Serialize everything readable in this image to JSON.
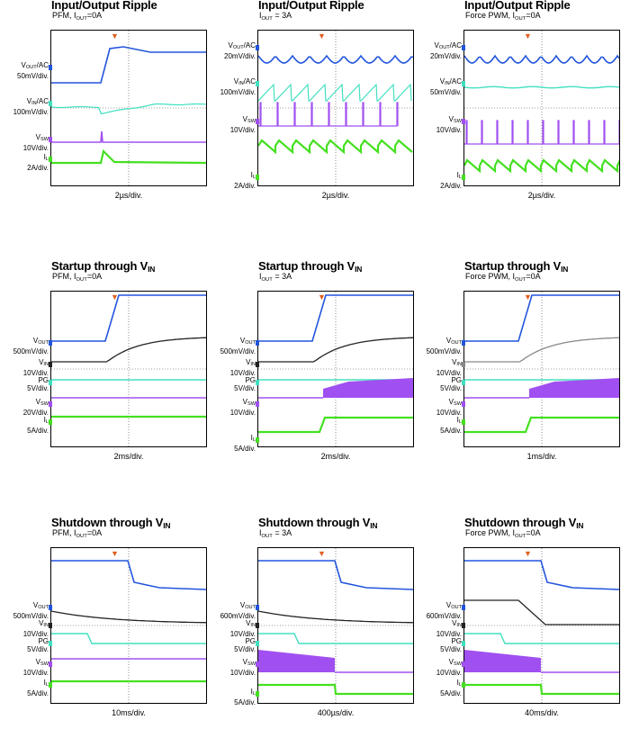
{
  "panels": [
    {
      "title": "Input/Output Ripple",
      "title_sub": "",
      "subtitle": "PFM, I",
      "subtitle_sub": "OUT",
      "subtitle_tail": "=0A",
      "xlabel": "2µs/div.",
      "channels": [
        {
          "name": "V",
          "name_sub": "OUT",
          "name_tail": "/AC",
          "scale": "50mV/div.",
          "color": "#2255dd"
        },
        {
          "name": "V",
          "name_sub": "IN",
          "name_tail": "/AC",
          "scale": "100mV/div.",
          "color": "#40e0c0"
        },
        {
          "name": "V",
          "name_sub": "SW",
          "name_tail": "",
          "scale": "10V/div.",
          "color": "#a050f0"
        },
        {
          "name": "I",
          "name_sub": "L",
          "name_tail": "",
          "scale": "2A/div.",
          "color": "#44e020"
        }
      ]
    },
    {
      "title": "Input/Output Ripple",
      "title_sub": "",
      "subtitle": "I",
      "subtitle_sub": "OUT",
      "subtitle_tail": " = 3A",
      "xlabel": "2µs/div.",
      "channels": [
        {
          "name": "V",
          "name_sub": "OUT",
          "name_tail": "/AC",
          "scale": "20mV/div.",
          "color": "#2255dd"
        },
        {
          "name": "V",
          "name_sub": "IN",
          "name_tail": "/AC",
          "scale": "100mV/div.",
          "color": "#40e0c0"
        },
        {
          "name": "V",
          "name_sub": "SW",
          "name_tail": "",
          "scale": "10V/div.",
          "color": "#a050f0"
        },
        {
          "name": "I",
          "name_sub": "L",
          "name_tail": "",
          "scale": "2A/div.",
          "color": "#44e020"
        }
      ]
    },
    {
      "title": "Input/Output Ripple",
      "title_sub": "",
      "subtitle": "Force PWM, I",
      "subtitle_sub": "OUT",
      "subtitle_tail": "=0A",
      "xlabel": "2µs/div.",
      "channels": [
        {
          "name": "V",
          "name_sub": "OUT",
          "name_tail": "/AC",
          "scale": "20mV/div.",
          "color": "#2255dd"
        },
        {
          "name": "V",
          "name_sub": "IN",
          "name_tail": "/AC",
          "scale": "50mV/div.",
          "color": "#40e0c0"
        },
        {
          "name": "V",
          "name_sub": "SW",
          "name_tail": "",
          "scale": "10V/div.",
          "color": "#a050f0"
        },
        {
          "name": "I",
          "name_sub": "L",
          "name_tail": "",
          "scale": "2A/div.",
          "color": "#44e020"
        }
      ]
    },
    {
      "title": "Startup through V",
      "title_sub": "IN",
      "subtitle": "PFM, I",
      "subtitle_sub": "OUT",
      "subtitle_tail": "=0A",
      "xlabel": "2ms/div.",
      "channels": [
        {
          "name": "V",
          "name_sub": "OUT",
          "name_tail": "",
          "scale": "500mV/div.",
          "color": "#2255dd"
        },
        {
          "name": "V",
          "name_sub": "IN",
          "name_tail": "",
          "scale": "10V/div.",
          "color": "#222222"
        },
        {
          "name": "PG",
          "name_sub": "",
          "name_tail": "",
          "scale": "5V/div.",
          "color": "#40e0c0"
        },
        {
          "name": "V",
          "name_sub": "SW",
          "name_tail": "",
          "scale": "20V/div.",
          "color": "#a050f0"
        },
        {
          "name": "I",
          "name_sub": "L",
          "name_tail": "",
          "scale": "5A/div.",
          "color": "#44e020"
        }
      ]
    },
    {
      "title": "Startup through V",
      "title_sub": "IN",
      "subtitle": "I",
      "subtitle_sub": "OUT",
      "subtitle_tail": " = 3A",
      "xlabel": "2ms/div.",
      "channels": [
        {
          "name": "V",
          "name_sub": "OUT",
          "name_tail": "",
          "scale": "500mV/div.",
          "color": "#2255dd"
        },
        {
          "name": "V",
          "name_sub": "IN",
          "name_tail": "",
          "scale": "10V/div.",
          "color": "#222222"
        },
        {
          "name": "PG",
          "name_sub": "",
          "name_tail": "",
          "scale": "5V/div.",
          "color": "#40e0c0"
        },
        {
          "name": "V",
          "name_sub": "SW",
          "name_tail": "",
          "scale": "10V/div.",
          "color": "#a050f0"
        },
        {
          "name": "I",
          "name_sub": "L",
          "name_tail": "",
          "scale": "5A/div.",
          "color": "#44e020"
        }
      ]
    },
    {
      "title": "Startup through V",
      "title_sub": "IN",
      "subtitle": "Force PWM, I",
      "subtitle_sub": "OUT",
      "subtitle_tail": "=0A",
      "xlabel": "1ms/div.",
      "channels": [
        {
          "name": "V",
          "name_sub": "OUT",
          "name_tail": "",
          "scale": "500mV/div.",
          "color": "#2255dd"
        },
        {
          "name": "V",
          "name_sub": "IN",
          "name_tail": "",
          "scale": "10V/div.",
          "color": "#888888"
        },
        {
          "name": "PG",
          "name_sub": "",
          "name_tail": "",
          "scale": "5V/div.",
          "color": "#40e0c0"
        },
        {
          "name": "V",
          "name_sub": "SW",
          "name_tail": "",
          "scale": "10V/div.",
          "color": "#a050f0"
        },
        {
          "name": "I",
          "name_sub": "L",
          "name_tail": "",
          "scale": "5A/div.",
          "color": "#44e020"
        }
      ]
    },
    {
      "title": "Shutdown through V",
      "title_sub": "IN",
      "subtitle": "PFM, I",
      "subtitle_sub": "OUT",
      "subtitle_tail": "=0A",
      "xlabel": "10ms/div.",
      "channels": [
        {
          "name": "V",
          "name_sub": "OUT",
          "name_tail": "",
          "scale": "500mV/div.",
          "color": "#2255dd"
        },
        {
          "name": "V",
          "name_sub": "IN",
          "name_tail": "",
          "scale": "10V/div.",
          "color": "#222222"
        },
        {
          "name": "PG",
          "name_sub": "",
          "name_tail": "",
          "scale": "5V/div.",
          "color": "#40e0c0"
        },
        {
          "name": "V",
          "name_sub": "SW",
          "name_tail": "",
          "scale": "10V/div.",
          "color": "#a050f0"
        },
        {
          "name": "I",
          "name_sub": "L",
          "name_tail": "",
          "scale": "5A/div.",
          "color": "#44e020"
        }
      ]
    },
    {
      "title": "Shutdown through V",
      "title_sub": "IN",
      "subtitle": "I",
      "subtitle_sub": "OUT",
      "subtitle_tail": " = 3A",
      "xlabel": "400µs/div.",
      "channels": [
        {
          "name": "V",
          "name_sub": "OUT",
          "name_tail": "",
          "scale": "600mV/div.",
          "color": "#2255dd"
        },
        {
          "name": "V",
          "name_sub": "IN",
          "name_tail": "",
          "scale": "10V/div.",
          "color": "#222222"
        },
        {
          "name": "PG",
          "name_sub": "",
          "name_tail": "",
          "scale": "5V/div.",
          "color": "#40e0c0"
        },
        {
          "name": "V",
          "name_sub": "SW",
          "name_tail": "",
          "scale": "10V/div.",
          "color": "#a050f0"
        },
        {
          "name": "I",
          "name_sub": "L",
          "name_tail": "",
          "scale": "5A/div.",
          "color": "#44e020"
        }
      ]
    },
    {
      "title": "Shutdown through V",
      "title_sub": "IN",
      "subtitle": "Force PWM, I",
      "subtitle_sub": "OUT",
      "subtitle_tail": "=0A",
      "xlabel": "40ms/div.",
      "channels": [
        {
          "name": "V",
          "name_sub": "OUT",
          "name_tail": "",
          "scale": "600mV/div.",
          "color": "#2255dd"
        },
        {
          "name": "V",
          "name_sub": "IN",
          "name_tail": "",
          "scale": "10V/div.",
          "color": "#222222"
        },
        {
          "name": "PG",
          "name_sub": "",
          "name_tail": "",
          "scale": "5V/div.",
          "color": "#40e0c0"
        },
        {
          "name": "V",
          "name_sub": "SW",
          "name_tail": "",
          "scale": "10V/div.",
          "color": "#a050f0"
        },
        {
          "name": "I",
          "name_sub": "L",
          "name_tail": "",
          "scale": "5A/div.",
          "color": "#44e020"
        }
      ]
    }
  ],
  "chart_data": {
    "type": "line",
    "grid": false,
    "description_units": "oscilloscope captures; time axis scale per panel",
    "panels": [
      {
        "panel": 1,
        "series": [
          {
            "name": "VOUT/AC",
            "shape": "step-up"
          },
          {
            "name": "VIN/AC",
            "shape": "dip-recover"
          },
          {
            "name": "VSW",
            "shape": "single-pulse"
          },
          {
            "name": "IL",
            "shape": "triangle-burst"
          }
        ]
      },
      {
        "panel": 2,
        "series": [
          {
            "name": "VOUT/AC",
            "shape": "ripple"
          },
          {
            "name": "VIN/AC",
            "shape": "sawtooth"
          },
          {
            "name": "VSW",
            "shape": "pulse-train"
          },
          {
            "name": "IL",
            "shape": "sawtooth"
          }
        ]
      },
      {
        "panel": 3,
        "series": [
          {
            "name": "VOUT/AC",
            "shape": "ripple"
          },
          {
            "name": "VIN/AC",
            "shape": "flat-noisy"
          },
          {
            "name": "VSW",
            "shape": "pulse-train"
          },
          {
            "name": "IL",
            "shape": "sawtooth"
          }
        ]
      },
      {
        "panel": 4,
        "series": [
          {
            "name": "VOUT",
            "shape": "ramp-up"
          },
          {
            "name": "VIN",
            "shape": "rise-exp"
          },
          {
            "name": "PG",
            "shape": "flat"
          },
          {
            "name": "VSW",
            "shape": "flat"
          },
          {
            "name": "IL",
            "shape": "flat"
          }
        ]
      },
      {
        "panel": 5,
        "series": [
          {
            "name": "VOUT",
            "shape": "ramp-up"
          },
          {
            "name": "VIN",
            "shape": "rise-exp"
          },
          {
            "name": "PG",
            "shape": "flat"
          },
          {
            "name": "VSW",
            "shape": "switching-on"
          },
          {
            "name": "IL",
            "shape": "step-up"
          }
        ]
      },
      {
        "panel": 6,
        "series": [
          {
            "name": "VOUT",
            "shape": "ramp-up"
          },
          {
            "name": "VIN",
            "shape": "rise-exp"
          },
          {
            "name": "PG",
            "shape": "flat"
          },
          {
            "name": "VSW",
            "shape": "switching-on"
          },
          {
            "name": "IL",
            "shape": "step-up"
          }
        ]
      },
      {
        "panel": 7,
        "series": [
          {
            "name": "VOUT",
            "shape": "drop"
          },
          {
            "name": "VIN",
            "shape": "decay"
          },
          {
            "name": "PG",
            "shape": "drop"
          },
          {
            "name": "VSW",
            "shape": "flat"
          },
          {
            "name": "IL",
            "shape": "flat"
          }
        ]
      },
      {
        "panel": 8,
        "series": [
          {
            "name": "VOUT",
            "shape": "drop"
          },
          {
            "name": "VIN",
            "shape": "decay"
          },
          {
            "name": "PG",
            "shape": "drop"
          },
          {
            "name": "VSW",
            "shape": "switching-off"
          },
          {
            "name": "IL",
            "shape": "step-down"
          }
        ]
      },
      {
        "panel": 9,
        "series": [
          {
            "name": "VOUT",
            "shape": "drop"
          },
          {
            "name": "VIN",
            "shape": "ramp-down"
          },
          {
            "name": "PG",
            "shape": "drop"
          },
          {
            "name": "VSW",
            "shape": "switching-off"
          },
          {
            "name": "IL",
            "shape": "step-down"
          }
        ]
      }
    ]
  }
}
